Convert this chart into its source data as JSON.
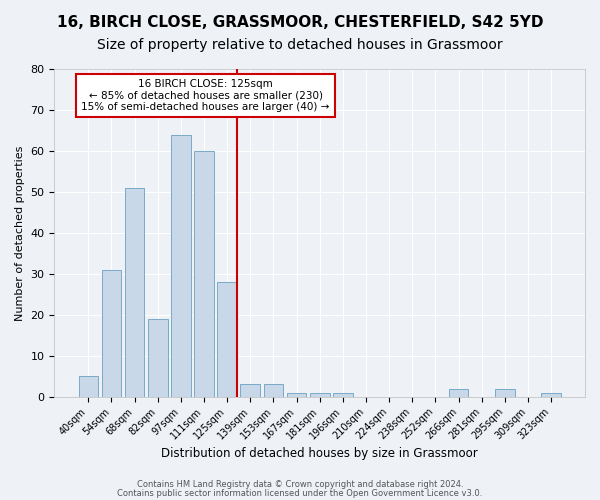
{
  "title1": "16, BIRCH CLOSE, GRASSMOOR, CHESTERFIELD, S42 5YD",
  "title2": "Size of property relative to detached houses in Grassmoor",
  "xlabel": "Distribution of detached houses by size in Grassmoor",
  "ylabel": "Number of detached properties",
  "categories": [
    "40sqm",
    "54sqm",
    "68sqm",
    "82sqm",
    "97sqm",
    "111sqm",
    "125sqm",
    "139sqm",
    "153sqm",
    "167sqm",
    "181sqm",
    "196sqm",
    "210sqm",
    "224sqm",
    "238sqm",
    "252sqm",
    "266sqm",
    "281sqm",
    "295sqm",
    "309sqm",
    "323sqm"
  ],
  "values": [
    5,
    31,
    51,
    19,
    64,
    60,
    28,
    3,
    3,
    1,
    1,
    1,
    0,
    0,
    0,
    0,
    2,
    0,
    2,
    0,
    1
  ],
  "bar_color": "#c8d8e8",
  "bar_edge_color": "#7aaac8",
  "red_line_index": 6,
  "annotation_line1": "16 BIRCH CLOSE: 125sqm",
  "annotation_line2": "← 85% of detached houses are smaller (230)",
  "annotation_line3": "15% of semi-detached houses are larger (40) →",
  "annotation_box_color": "#ffffff",
  "annotation_box_edge": "#cc0000",
  "red_line_color": "#cc0000",
  "ylim": [
    0,
    80
  ],
  "yticks": [
    0,
    10,
    20,
    30,
    40,
    50,
    60,
    70,
    80
  ],
  "footer1": "Contains HM Land Registry data © Crown copyright and database right 2024.",
  "footer2": "Contains public sector information licensed under the Open Government Licence v3.0.",
  "background_color": "#eef2f7",
  "grid_color": "#ffffff",
  "title1_fontsize": 11,
  "title2_fontsize": 10
}
